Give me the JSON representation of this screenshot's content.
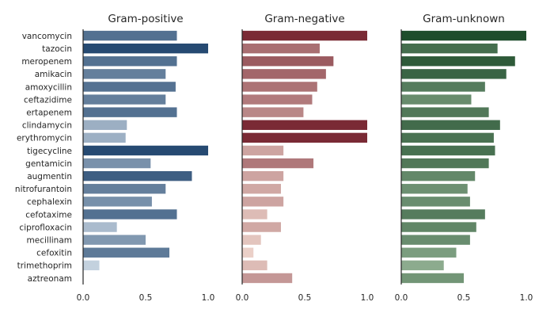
{
  "chart_data": [
    {
      "type": "bar",
      "orientation": "horizontal",
      "title": "Gram-positive",
      "categories": [
        "vancomycin",
        "tazocin",
        "meropenem",
        "amikacin",
        "amoxycillin",
        "ceftazidime",
        "ertapenem",
        "clindamycin",
        "erythromycin",
        "tigecycline",
        "gentamicin",
        "augmentin",
        "nitrofurantoin",
        "cephalexin",
        "cefotaxime",
        "ciprofloxacin",
        "mecillinam",
        "cefoxitin",
        "trimethoprim",
        "aztreonam"
      ],
      "values": [
        0.75,
        1.0,
        0.75,
        0.66,
        0.74,
        0.66,
        0.75,
        0.35,
        0.34,
        1.0,
        0.54,
        0.87,
        0.66,
        0.55,
        0.75,
        0.27,
        0.5,
        0.69,
        0.13,
        0.0
      ],
      "xlim": [
        0,
        1
      ],
      "xticks": [
        "0.0",
        "0.5",
        "1.0"
      ],
      "palette": {
        "light": "#dbe5ee",
        "dark": "#264a72"
      }
    },
    {
      "type": "bar",
      "orientation": "horizontal",
      "title": "Gram-negative",
      "categories": [
        "vancomycin",
        "tazocin",
        "meropenem",
        "amikacin",
        "amoxycillin",
        "ceftazidime",
        "ertapenem",
        "clindamycin",
        "erythromycin",
        "tigecycline",
        "gentamicin",
        "augmentin",
        "nitrofurantoin",
        "cephalexin",
        "cefotaxime",
        "ciprofloxacin",
        "mecillinam",
        "cefoxitin",
        "trimethoprim",
        "aztreonam"
      ],
      "values": [
        1.0,
        0.62,
        0.73,
        0.67,
        0.6,
        0.56,
        0.49,
        1.0,
        1.0,
        0.33,
        0.57,
        0.33,
        0.31,
        0.33,
        0.2,
        0.31,
        0.15,
        0.09,
        0.2,
        0.4
      ],
      "xlim": [
        0,
        1
      ],
      "xticks": [
        "0.0",
        "0.5",
        "1.0"
      ],
      "palette": {
        "light": "#f6e0d6",
        "dark": "#7a2a35"
      }
    },
    {
      "type": "bar",
      "orientation": "horizontal",
      "title": "Gram-unknown",
      "categories": [
        "vancomycin",
        "tazocin",
        "meropenem",
        "amikacin",
        "amoxycillin",
        "ceftazidime",
        "ertapenem",
        "clindamycin",
        "erythromycin",
        "tigecycline",
        "gentamicin",
        "augmentin",
        "nitrofurantoin",
        "cephalexin",
        "cefotaxime",
        "ciprofloxacin",
        "mecillinam",
        "cefoxitin",
        "trimethoprim",
        "aztreonam"
      ],
      "values": [
        1.0,
        0.77,
        0.91,
        0.84,
        0.67,
        0.56,
        0.7,
        0.79,
        0.74,
        0.75,
        0.7,
        0.59,
        0.53,
        0.55,
        0.67,
        0.6,
        0.55,
        0.44,
        0.34,
        0.5
      ],
      "xlim": [
        0,
        1
      ],
      "xticks": [
        "0.0",
        "0.5",
        "1.0"
      ],
      "palette": {
        "light": "#c4dcc0",
        "dark": "#1f4d2c"
      }
    }
  ]
}
